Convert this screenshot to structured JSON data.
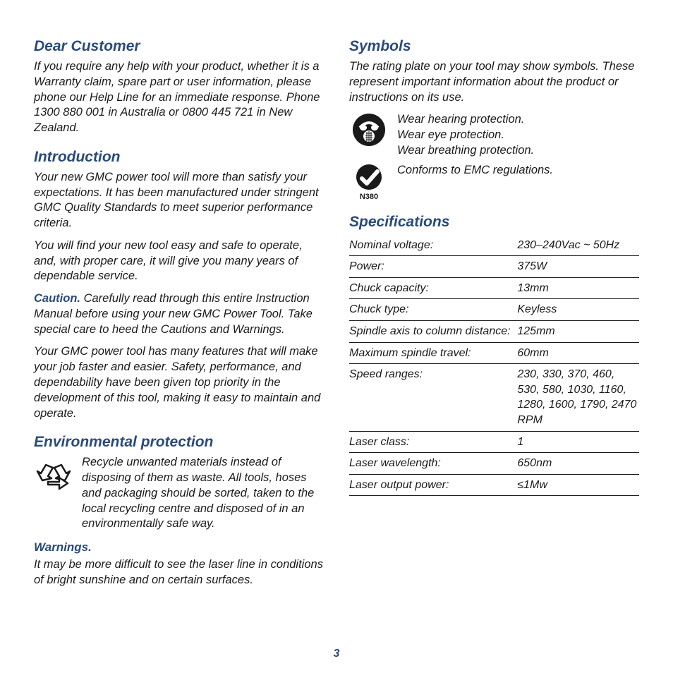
{
  "page_number": "3",
  "left": {
    "dear_customer": {
      "title": "Dear Customer",
      "body": "If you require any help with your product, whether it is a Warranty claim, spare part or user information, please phone our Help Line for an immediate response. Phone 1300 880 001 in Australia or 0800 445 721 in New Zealand."
    },
    "introduction": {
      "title": "Introduction",
      "p1": "Your new GMC power tool will more than satisfy your expectations. It has been manufactured under stringent GMC Quality Standards to meet superior performance criteria.",
      "p2": "You will find your new tool easy and safe to operate, and, with proper care, it will give you many years of dependable service.",
      "caution_label": "Caution.",
      "p3": " Carefully read through this entire Instruction Manual before using your new GMC Power Tool. Take special care to heed the Cautions and Warnings.",
      "p4": "Your GMC power tool has many features that will make your job faster and easier. Safety, performance, and dependability have been given top priority in the development of this tool, making it easy to maintain and operate."
    },
    "environmental": {
      "title": "Environmental protection",
      "body": "Recycle unwanted materials instead of disposing of them as waste. All tools, hoses and packaging should be sorted, taken to the local recycling centre and disposed of in an environmentally safe way."
    },
    "warnings": {
      "title": "Warnings.",
      "body": "It may be more difficult to see the laser line in conditions of bright sunshine and on certain surfaces."
    }
  },
  "right": {
    "symbols": {
      "title": "Symbols",
      "intro": "The rating plate on your tool may show symbols. These represent important information about the product or instructions on its use.",
      "protection_l1": "Wear hearing protection.",
      "protection_l2": "Wear eye protection.",
      "protection_l3": "Wear breathing protection.",
      "emc_caption": "N380",
      "emc_text": "Conforms to EMC regulations."
    },
    "specifications": {
      "title": "Specifications",
      "rows": [
        {
          "label": "Nominal voltage:",
          "value": "230–240Vac ~ 50Hz"
        },
        {
          "label": "Power:",
          "value": "375W"
        },
        {
          "label": "Chuck capacity:",
          "value": "13mm"
        },
        {
          "label": "Chuck type:",
          "value": "Keyless"
        },
        {
          "label": "Spindle axis to column distance:",
          "value": "125mm"
        },
        {
          "label": "Maximum spindle travel:",
          "value": "60mm"
        },
        {
          "label": "Speed ranges:",
          "value": "230, 330, 370, 460, 530, 580, 1030, 1160, 1280, 1600, 1790, 2470 RPM"
        },
        {
          "label": "Laser class:",
          "value": "1"
        },
        {
          "label": "Laser wavelength:",
          "value": "650nm"
        },
        {
          "label": "Laser output power:",
          "value": "≤1Mw"
        }
      ]
    }
  },
  "style": {
    "heading_color": "#2a4a7a",
    "text_color": "#1a1a1a",
    "background": "#ffffff",
    "rule_color": "#1a1a1a",
    "body_fontsize": 16.5,
    "heading_fontsize": 21,
    "spec_label_col_pct": 58,
    "spec_value_col_pct": 42
  }
}
